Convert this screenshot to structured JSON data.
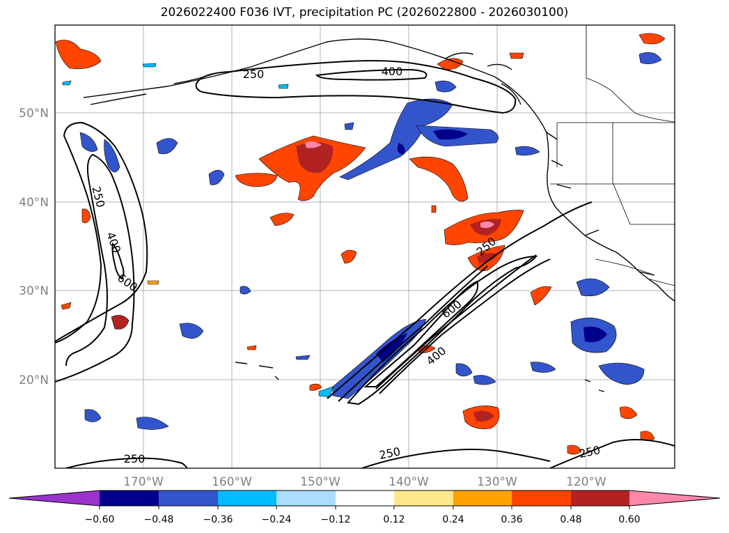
{
  "title": "2026022400 F036 IVT, precipitation PC (2026022800 - 2026030100)",
  "lon_labels": [
    "170°W",
    "160°W",
    "150°W",
    "140°W",
    "130°W",
    "120°W"
  ],
  "lat_labels": [
    "50°N",
    "40°N",
    "30°N",
    "20°N"
  ],
  "contour_labels": [
    {
      "text": "250",
      "rot": 0
    },
    {
      "text": "400",
      "rot": 0
    },
    {
      "text": "250",
      "rot": 76
    },
    {
      "text": "400",
      "rot": 70
    },
    {
      "text": "600",
      "rot": 35
    },
    {
      "text": "250",
      "rot": -40
    },
    {
      "text": "600",
      "rot": -38
    },
    {
      "text": "400",
      "rot": -40
    },
    {
      "text": "250",
      "rot": 0
    },
    {
      "text": "250",
      "rot": -12
    },
    {
      "text": "250",
      "rot": -12
    }
  ],
  "colorbar": {
    "colors": [
      "#9933cc",
      "#00008b",
      "#3355cc",
      "#00bbff",
      "#aaddff",
      "#ffffff",
      "#ffe88c",
      "#ffa200",
      "#ff4500",
      "#b22222",
      "#ff88aa"
    ],
    "ticks": [
      "−0.60",
      "−0.48",
      "−0.36",
      "−0.24",
      "−0.12",
      "0.12",
      "0.24",
      "0.36",
      "0.48",
      "0.60"
    ]
  }
}
